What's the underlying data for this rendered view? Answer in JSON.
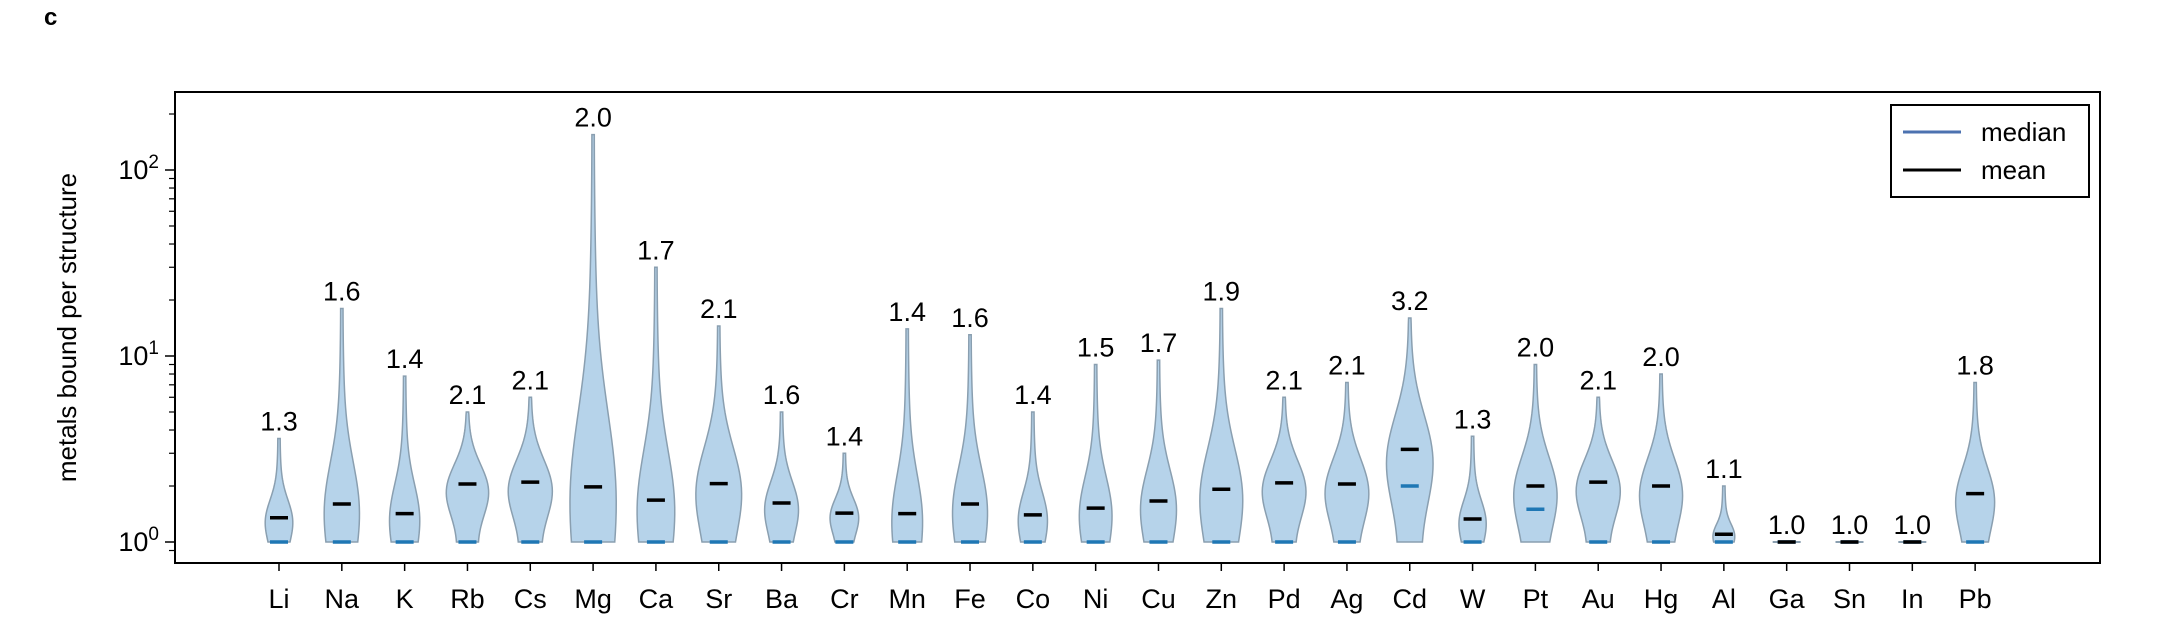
{
  "panel_label": "c",
  "chart_data": {
    "type": "violin",
    "ylabel": "metals bound per structure",
    "yscale": "log",
    "ylim": [
      0.85,
      270
    ],
    "ytick_labels": [
      {
        "value": 1,
        "base": "10",
        "exp": "0"
      },
      {
        "value": 10,
        "base": "10",
        "exp": "1"
      },
      {
        "value": 100,
        "base": "10",
        "exp": "2"
      }
    ],
    "categories": [
      "Li",
      "Na",
      "K",
      "Rb",
      "Cs",
      "Mg",
      "Ca",
      "Sr",
      "Ba",
      "Cr",
      "Mn",
      "Fe",
      "Co",
      "Ni",
      "Cu",
      "Zn",
      "Pd",
      "Ag",
      "Cd",
      "W",
      "Pt",
      "Au",
      "Hg",
      "Al",
      "Ga",
      "Sn",
      "In",
      "Pb"
    ],
    "mean_labels": [
      "1.3",
      "1.6",
      "1.4",
      "2.1",
      "2.1",
      "2.0",
      "1.7",
      "2.1",
      "1.6",
      "1.4",
      "1.4",
      "1.6",
      "1.4",
      "1.5",
      "1.7",
      "1.9",
      "2.1",
      "2.1",
      "3.2",
      "1.3",
      "2.0",
      "2.1",
      "2.0",
      "1.1",
      "1.0",
      "1.0",
      "1.0",
      "1.8"
    ],
    "mean": [
      1.35,
      1.6,
      1.42,
      2.05,
      2.1,
      1.98,
      1.68,
      2.06,
      1.62,
      1.43,
      1.42,
      1.6,
      1.4,
      1.52,
      1.66,
      1.92,
      2.08,
      2.05,
      3.15,
      1.33,
      2.0,
      2.1,
      2.0,
      1.1,
      1.0,
      1.0,
      1.0,
      1.82
    ],
    "median": [
      1,
      1,
      1,
      1,
      1,
      1,
      1,
      1,
      1,
      1,
      1,
      1,
      1,
      1,
      1,
      1,
      1,
      1,
      2,
      1,
      1.5,
      1,
      1,
      1,
      1,
      1,
      1,
      1
    ],
    "max": [
      3.6,
      18,
      7.8,
      5,
      6,
      155,
      30,
      14.5,
      5,
      3,
      14,
      13,
      5,
      9,
      9.5,
      18,
      6,
      7.2,
      16,
      3.7,
      9,
      6,
      8,
      2,
      1,
      1,
      1,
      7.2
    ],
    "legend": [
      {
        "label": "median",
        "color": "#4c72b0"
      },
      {
        "label": "mean",
        "color": "#000000"
      }
    ],
    "colors": {
      "violin_fill": "#b6d3ea",
      "violin_edge": "#8a9fb0",
      "median": "#1f77b4",
      "mean": "#000000"
    }
  }
}
